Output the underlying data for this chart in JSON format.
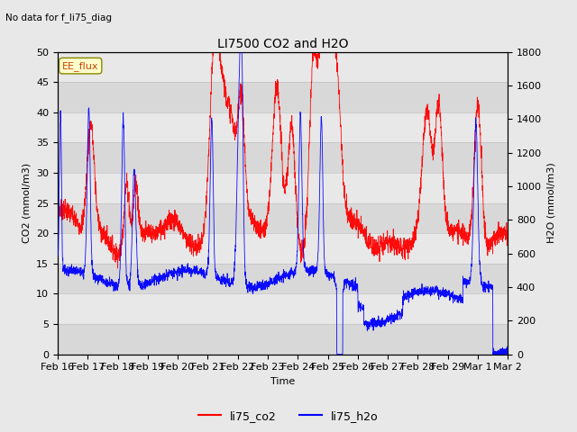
{
  "title": "LI7500 CO2 and H2O",
  "subtitle": "No data for f_li75_diag",
  "xlabel": "Time",
  "ylabel_left": "CO2 (mmol/m3)",
  "ylabel_right": "H2O (mmol/m3)",
  "legend_box_label": "EE_flux",
  "legend_entries": [
    "li75_co2",
    "li75_h2o"
  ],
  "legend_colors": [
    "red",
    "blue"
  ],
  "co2_color": "red",
  "h2o_color": "blue",
  "ylim_left": [
    0,
    50
  ],
  "ylim_right": [
    0,
    1800
  ],
  "background_color": "#e8e8e8",
  "plot_bg_color": "#e8e8e8",
  "x_tick_labels": [
    "Feb 16",
    "Feb 17",
    "Feb 18",
    "Feb 19",
    "Feb 20",
    "Feb 21",
    "Feb 22",
    "Feb 23",
    "Feb 24",
    "Feb 25",
    "Feb 26",
    "Feb 27",
    "Feb 28",
    "Feb 29",
    "Mar 1",
    "Mar 2"
  ],
  "n_points": 2880,
  "grid_colors": [
    "#d0d0d0",
    "#ffffff"
  ],
  "yticks_left": [
    0,
    5,
    10,
    15,
    20,
    25,
    30,
    35,
    40,
    45,
    50
  ],
  "yticks_right": [
    0,
    200,
    400,
    600,
    800,
    1000,
    1200,
    1400,
    1600,
    1800
  ]
}
